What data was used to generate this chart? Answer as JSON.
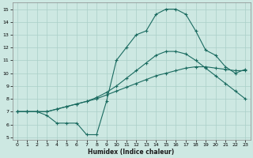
{
  "xlabel": "Humidex (Indice chaleur)",
  "xlim": [
    -0.5,
    23.5
  ],
  "ylim": [
    4.8,
    15.5
  ],
  "xticks": [
    0,
    1,
    2,
    3,
    4,
    5,
    6,
    7,
    8,
    9,
    10,
    11,
    12,
    13,
    14,
    15,
    16,
    17,
    18,
    19,
    20,
    21,
    22,
    23
  ],
  "yticks": [
    5,
    6,
    7,
    8,
    9,
    10,
    11,
    12,
    13,
    14,
    15
  ],
  "bg_color": "#cde8e2",
  "line_color": "#1a6b60",
  "grid_color": "#aacfc8",
  "line1_x": [
    0,
    1,
    2,
    3,
    4,
    5,
    6,
    7,
    8,
    9,
    10,
    11,
    12,
    13,
    14,
    15,
    16,
    17,
    18,
    19,
    20,
    21,
    22,
    23
  ],
  "line1_y": [
    7.0,
    7.0,
    7.0,
    7.0,
    7.2,
    7.4,
    7.6,
    7.8,
    8.1,
    8.5,
    9.0,
    9.6,
    10.2,
    10.8,
    11.4,
    11.7,
    11.7,
    11.5,
    11.0,
    10.4,
    9.8,
    9.2,
    8.6,
    8.0
  ],
  "line2_x": [
    0,
    1,
    2,
    3,
    4,
    5,
    6,
    7,
    8,
    9,
    10,
    11,
    12,
    13,
    14,
    15,
    16,
    17,
    18,
    19,
    20,
    21,
    22,
    23
  ],
  "line2_y": [
    7.0,
    7.0,
    7.0,
    7.0,
    7.2,
    7.4,
    7.6,
    7.8,
    8.0,
    8.3,
    8.6,
    8.9,
    9.2,
    9.5,
    9.8,
    10.0,
    10.2,
    10.4,
    10.5,
    10.5,
    10.4,
    10.3,
    10.2,
    10.2
  ],
  "line3_x": [
    0,
    1,
    2,
    3,
    4,
    5,
    6,
    7,
    8,
    9,
    10,
    11,
    12,
    13,
    14,
    15,
    16,
    17,
    18,
    19,
    20,
    21,
    22,
    23
  ],
  "line3_y": [
    7.0,
    7.0,
    7.0,
    6.7,
    6.1,
    6.1,
    6.1,
    5.2,
    5.2,
    7.8,
    11.0,
    12.0,
    13.0,
    13.3,
    14.6,
    15.0,
    15.0,
    14.6,
    13.3,
    11.8,
    11.4,
    10.5,
    10.0,
    10.3
  ]
}
